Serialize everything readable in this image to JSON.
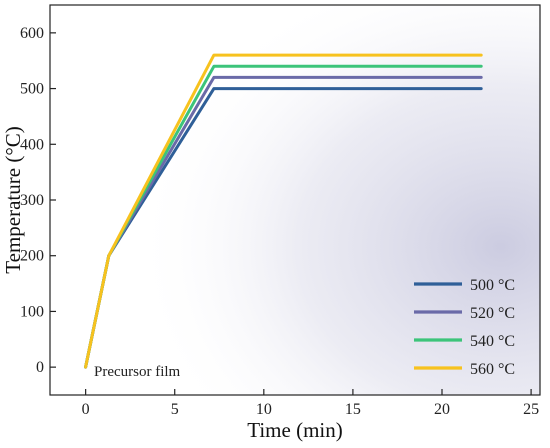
{
  "chart_data": {
    "type": "line",
    "xlabel": "Time (min)",
    "ylabel": "Temperature (°C)",
    "xlim": [
      -2,
      25.5
    ],
    "ylim": [
      -50,
      650
    ],
    "xticks": [
      0,
      5,
      10,
      15,
      20,
      25
    ],
    "yticks": [
      0,
      100,
      200,
      300,
      400,
      500,
      600
    ],
    "grid": false,
    "legend": "bottom-right",
    "annotation": "Precursor film",
    "series": [
      {
        "name": "500 °C",
        "color": "#2f5f98",
        "x": [
          0,
          1.3,
          7.2,
          22.2
        ],
        "y": [
          0,
          200,
          500,
          500
        ]
      },
      {
        "name": "520 °C",
        "color": "#6a6aa8",
        "x": [
          0,
          1.3,
          7.2,
          22.2
        ],
        "y": [
          0,
          200,
          520,
          520
        ]
      },
      {
        "name": "540 °C",
        "color": "#3cc47a",
        "x": [
          0,
          1.3,
          7.2,
          22.2
        ],
        "y": [
          0,
          200,
          540,
          540
        ]
      },
      {
        "name": "560 °C",
        "color": "#f7c21e",
        "x": [
          0,
          1.3,
          7.2,
          22.2
        ],
        "y": [
          0,
          200,
          560,
          560
        ]
      }
    ]
  }
}
